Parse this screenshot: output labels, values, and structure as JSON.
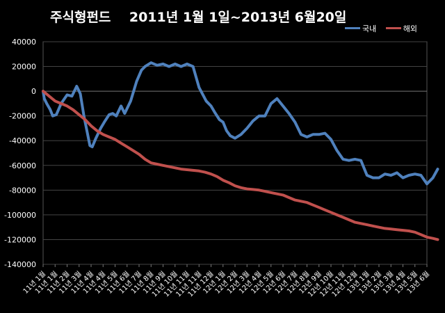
{
  "chart_data": {
    "type": "line",
    "title": "주식형펀드    2011년 1월 1일~2013년 6월20일",
    "xlabel": "",
    "ylabel": "",
    "ylim": [
      -140000,
      40000
    ],
    "yticks": [
      40000,
      20000,
      0,
      -20000,
      -40000,
      -60000,
      -80000,
      -100000,
      -120000,
      -140000
    ],
    "ytick_labels": [
      "40000",
      "20000",
      "0",
      "-20000",
      "-40000",
      "-60000",
      "-80000",
      "-100000",
      "-120000",
      "-140000"
    ],
    "grid": true,
    "legend": "top-right",
    "categories": [
      "11년 1월",
      "11년 1월",
      "11년 2월",
      "11년 3월",
      "11년 4월",
      "11년 4월",
      "11년 5월",
      "11년 6월",
      "11년 7월",
      "11년 8월",
      "11년 9월",
      "11년 10월",
      "11년 11월",
      "11년 11월",
      "11년 12월",
      "12년 1월",
      "12년 2월",
      "12년 3월",
      "12년 4월",
      "12년 5월",
      "12년 6월",
      "12년 7월",
      "12년 8월",
      "12년 9월",
      "12년 10월",
      "12년 11월",
      "12년 12월",
      "13년 1월",
      "13년 2월",
      "13년 3월",
      "13년 4월",
      "13년 5월",
      "13년 6월"
    ],
    "series": [
      {
        "name": "국내",
        "color": "#4F81BD",
        "x": [
          0,
          0.1,
          0.3,
          0.6,
          0.8,
          1.1,
          1.5,
          2,
          2.4,
          2.8,
          3.1,
          3.4,
          3.9,
          4.1,
          4.4,
          4.8,
          5.1,
          5.5,
          5.8,
          6.1,
          6.5,
          6.8,
          7.3,
          7.8,
          8.2,
          8.5,
          9,
          9.5,
          10,
          10.5,
          11,
          11.5,
          12,
          12.5,
          13,
          13.6,
          14,
          14.3,
          14.7,
          15,
          15.3,
          15.6,
          16,
          16.5,
          17,
          17.5,
          18,
          18.5,
          19,
          19.5,
          20,
          20.5,
          21,
          21.5,
          22,
          22.5,
          23,
          23.5,
          24,
          24.5,
          25,
          25.5,
          26,
          26.5,
          27,
          27.5,
          28,
          28.5,
          29,
          29.5,
          30,
          30.5,
          31,
          31.5,
          32,
          32.5,
          32.9
        ],
        "values": [
          0,
          -6000,
          -10000,
          -15000,
          -20000,
          -19000,
          -10000,
          -3000,
          -4000,
          4000,
          -2000,
          -20000,
          -44000,
          -45000,
          -38000,
          -30000,
          -25000,
          -19000,
          -18000,
          -20000,
          -12000,
          -18000,
          -8000,
          8000,
          17000,
          20000,
          23000,
          21000,
          22000,
          20000,
          22000,
          20000,
          22000,
          20000,
          3000,
          -8000,
          -12000,
          -17000,
          -23000,
          -25000,
          -32000,
          -36000,
          -38000,
          -35000,
          -30000,
          -24000,
          -20000,
          -20000,
          -10000,
          -6000,
          -12000,
          -18000,
          -25000,
          -35000,
          -37000,
          -35000,
          -35000,
          -34000,
          -39000,
          -48000,
          -55000,
          -56000,
          -55000,
          -56000,
          -68000,
          -70000,
          -70000,
          -67000,
          -68000,
          -66000,
          -70000,
          -68000,
          -67000,
          -68000,
          -75000,
          -70000,
          -63000
        ]
      },
      {
        "name": "해외",
        "color": "#C0504D",
        "x": [
          0,
          0.5,
          1,
          1.5,
          2,
          2.5,
          3,
          3.5,
          4,
          4.5,
          5,
          5.5,
          6,
          6.5,
          7,
          7.5,
          8,
          8.5,
          9,
          9.5,
          10,
          10.5,
          11,
          11.5,
          12,
          12.5,
          13,
          13.5,
          14,
          14.5,
          15,
          15.5,
          16,
          16.5,
          17,
          17.5,
          18,
          18.5,
          19,
          19.5,
          20,
          20.5,
          21,
          21.5,
          22,
          22.5,
          23,
          23.5,
          24,
          24.5,
          25,
          25.5,
          26,
          26.5,
          27,
          27.5,
          28,
          28.5,
          29,
          29.5,
          30,
          30.5,
          31,
          31.5,
          32,
          32.5,
          32.9
        ],
        "values": [
          0,
          -4000,
          -8000,
          -10000,
          -12000,
          -15000,
          -19000,
          -23000,
          -28000,
          -32000,
          -35000,
          -37000,
          -39000,
          -42000,
          -45000,
          -48000,
          -51000,
          -55000,
          -58000,
          -59000,
          -60000,
          -61000,
          -62000,
          -63000,
          -63500,
          -64000,
          -64500,
          -65500,
          -67000,
          -69000,
          -72000,
          -74000,
          -76500,
          -78000,
          -79000,
          -79500,
          -80000,
          -81000,
          -82000,
          -83000,
          -84000,
          -86000,
          -88000,
          -89000,
          -90000,
          -92000,
          -94000,
          -96000,
          -98000,
          -100000,
          -102000,
          -104000,
          -106000,
          -107000,
          -108000,
          -109000,
          -110000,
          -111000,
          -111500,
          -112000,
          -112500,
          -113000,
          -114000,
          -116000,
          -118000,
          -119000,
          -120000
        ]
      }
    ]
  }
}
